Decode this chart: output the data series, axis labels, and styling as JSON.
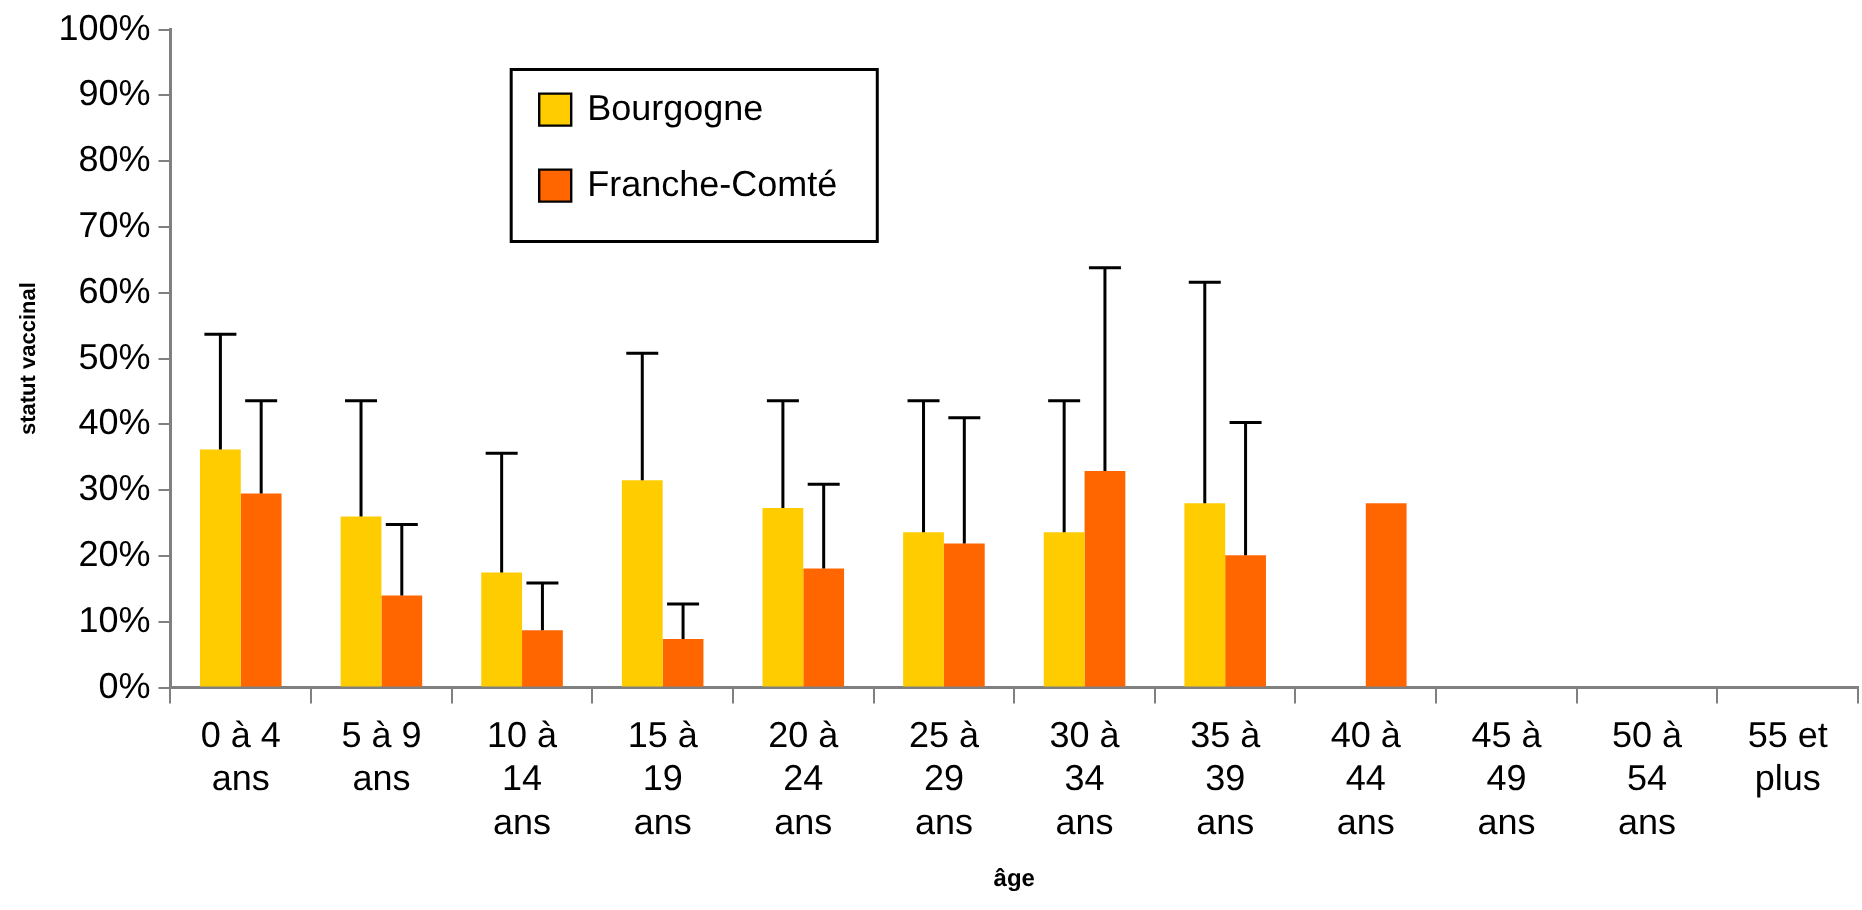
{
  "chart_data": {
    "type": "bar",
    "xlabel": "âge",
    "ylabel": "statut vaccinal",
    "categories": [
      "0 à 4 ans",
      "5 à 9 ans",
      "10 à 14 ans",
      "15 à 19 ans",
      "20 à 24 ans",
      "25 à 29 ans",
      "30 à 34 ans",
      "35 à 39 ans",
      "40 à 44 ans",
      "45 à 49 ans",
      "50 à 54 ans",
      "55 et plus"
    ],
    "series": [
      {
        "name": "Bourgogne",
        "color": "#ffcc00",
        "values": [
          36.2,
          26,
          17.5,
          31.5,
          27.3,
          23.6,
          23.6,
          28,
          null,
          null,
          null,
          null
        ],
        "errors": [
          [
            36.2,
            53.7
          ],
          [
            26,
            43.6
          ],
          [
            17.5,
            35.6
          ],
          [
            31.5,
            50.8
          ],
          [
            27.3,
            43.6
          ],
          [
            23.6,
            43.6
          ],
          [
            23.6,
            43.6
          ],
          [
            28,
            61.6
          ],
          null,
          null,
          null,
          null
        ]
      },
      {
        "name": "Franche-Comté",
        "color": "#ff6600",
        "values": [
          29.5,
          14,
          8.7,
          7.4,
          18.1,
          21.9,
          32.9,
          20.1,
          28,
          null,
          null,
          null
        ],
        "errors": [
          [
            29.5,
            43.6
          ],
          [
            14,
            24.8
          ],
          [
            8.7,
            15.9
          ],
          [
            7.4,
            12.7
          ],
          [
            18.1,
            30.9
          ],
          [
            21.9,
            41
          ],
          [
            32.9,
            63.8
          ],
          [
            20.1,
            40.3
          ],
          null,
          null,
          null,
          null
        ]
      }
    ],
    "ylim": [
      0,
      100
    ],
    "yticks": [
      {
        "value": 0,
        "label": "0%"
      },
      {
        "value": 10,
        "label": "10%"
      },
      {
        "value": 20,
        "label": "20%"
      },
      {
        "value": 30,
        "label": "30%"
      },
      {
        "value": 40,
        "label": "40%"
      },
      {
        "value": 50,
        "label": "50%"
      },
      {
        "value": 60,
        "label": "60%"
      },
      {
        "value": 70,
        "label": "70%"
      },
      {
        "value": 80,
        "label": "80%"
      },
      {
        "value": 90,
        "label": "90%"
      },
      {
        "value": 100,
        "label": "100%"
      }
    ],
    "grid": false,
    "legend": "top"
  }
}
